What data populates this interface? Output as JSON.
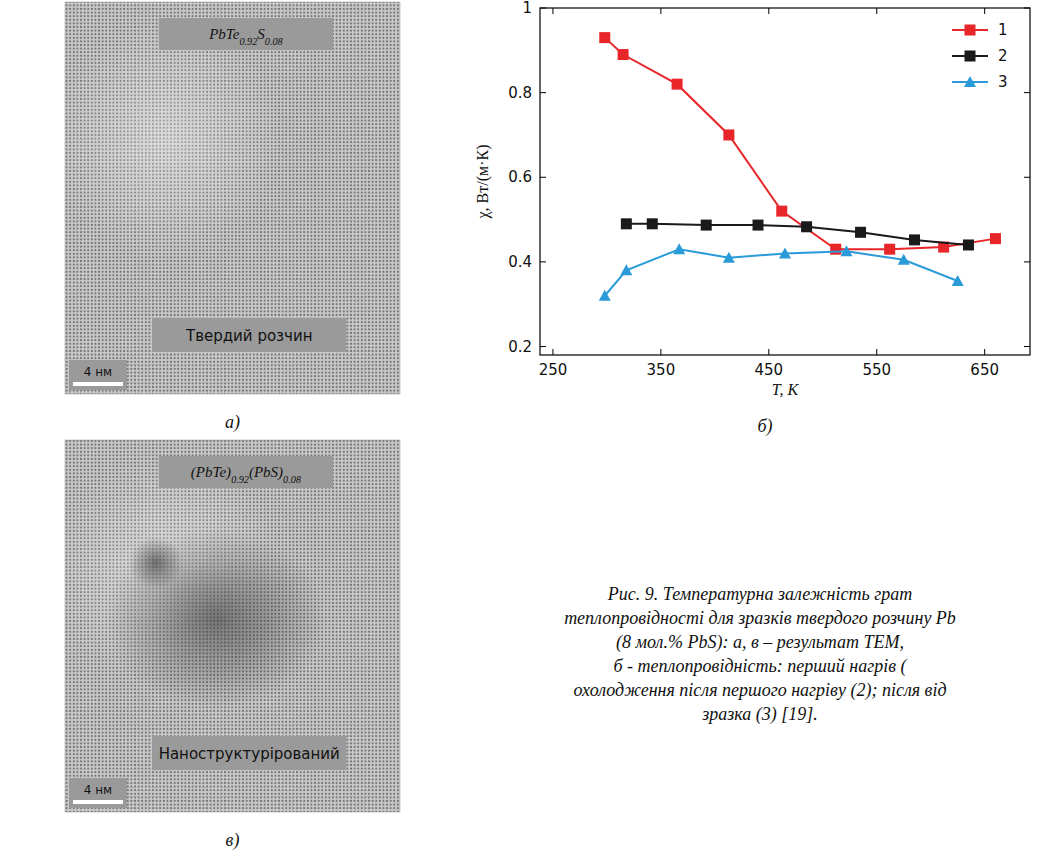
{
  "chart_data": {
    "type": "line",
    "x_label": "T, K",
    "y_label": "χ, Вт/(м·К)",
    "xlim": [
      238,
      692
    ],
    "xticks": [
      250,
      350,
      450,
      550,
      650
    ],
    "ylim": [
      0.18,
      1.0
    ],
    "yticks": [
      0.2,
      0.4,
      0.6,
      0.8,
      1
    ],
    "grid": false,
    "legend": "upper right",
    "series": [
      {
        "name": "1",
        "color": "#e8262a",
        "marker": "square",
        "line_style": "solid",
        "x": [
          298,
          315,
          365,
          413,
          462,
          512,
          562,
          612,
          660
        ],
        "values": [
          0.93,
          0.89,
          0.82,
          0.7,
          0.52,
          0.43,
          0.43,
          0.435,
          0.455
        ]
      },
      {
        "name": "2",
        "color": "#1a1a1a",
        "marker": "square",
        "line_style": "solid",
        "x": [
          318,
          342,
          392,
          440,
          485,
          535,
          585,
          635
        ],
        "values": [
          0.49,
          0.49,
          0.487,
          0.487,
          0.483,
          0.47,
          0.452,
          0.44
        ]
      },
      {
        "name": "3",
        "color": "#2a9bd8",
        "marker": "triangle",
        "line_style": "solid",
        "x": [
          298,
          318,
          367,
          413,
          465,
          522,
          575,
          625
        ],
        "values": [
          0.32,
          0.38,
          0.43,
          0.41,
          0.42,
          0.425,
          0.405,
          0.355
        ]
      }
    ]
  },
  "chart_letter": "б)",
  "images": [
    {
      "letter": "а)",
      "formula": "PbTe0.92S0.08",
      "label": "Твердий розчин",
      "scale_bar": "4 нм"
    },
    {
      "letter": "в)",
      "formula": "(PbTe)0.92(PbS)0.08",
      "label": "Наноструктурірований",
      "scale_bar": "4 нм"
    }
  ],
  "caption": [
    "Рис. 9. Температурна залежність грат",
    "теплопровідності для зразків твердого розчину Pb",
    "(8 мол.% PbS): а, в – результат ТЕМ,",
    "б - теплопровідність: перший нагрів (",
    "охолодження після першого нагріву (2); після від",
    "зразка (3) [19]."
  ]
}
